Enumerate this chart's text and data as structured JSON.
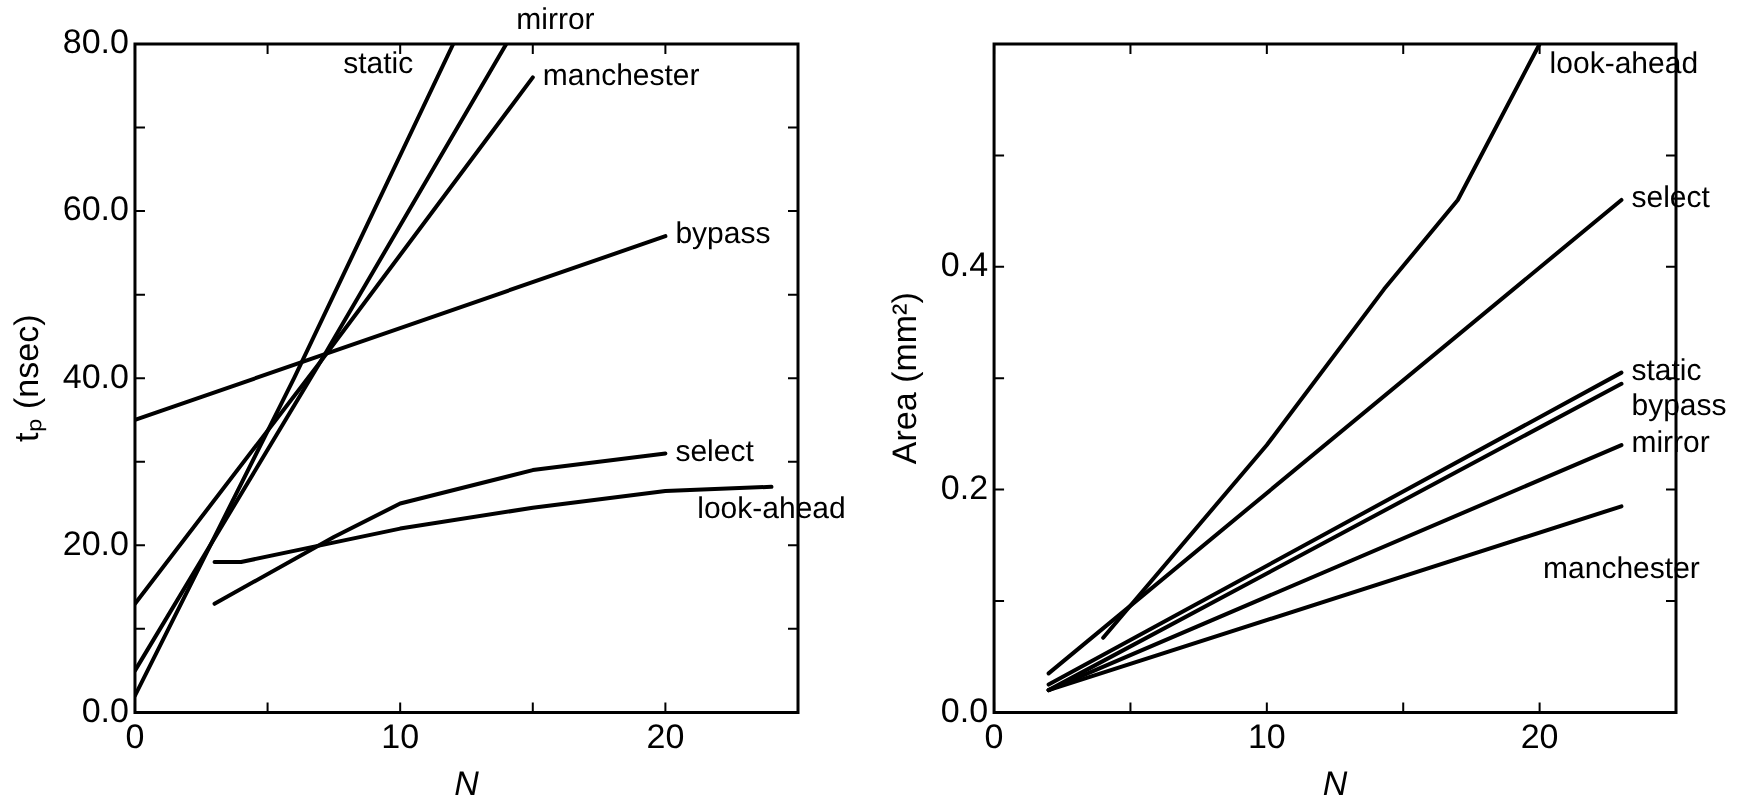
{
  "chart_data": [
    {
      "type": "line",
      "xlabel": "N",
      "ylabel": "tₚ (nsec)",
      "xlim": [
        0,
        25
      ],
      "xticks": [
        0,
        {
          "value": 5,
          "label": null
        },
        10,
        {
          "value": 15,
          "label": null
        },
        20,
        {
          "value": 25,
          "label": null
        }
      ],
      "ylim": [
        0,
        80
      ],
      "yticks": [
        {
          "value": 0,
          "label": "0.0"
        },
        {
          "value": 10,
          "label": null
        },
        {
          "value": 20,
          "label": "20.0"
        },
        {
          "value": 30,
          "label": null
        },
        {
          "value": 40,
          "label": "40.0"
        },
        {
          "value": 50,
          "label": null
        },
        {
          "value": 60,
          "label": "60.0"
        },
        {
          "value": 70,
          "label": null
        },
        {
          "value": 80,
          "label": "80.0"
        }
      ],
      "grid": false,
      "legend": "right",
      "marker": "none",
      "line_style": "solid",
      "series": [
        {
          "name": "static",
          "color": "#000000",
          "x": [
            0,
            6,
            12
          ],
          "values": [
            2,
            40,
            80
          ]
        },
        {
          "name": "mirror",
          "color": "#000000",
          "x": [
            0,
            7,
            14
          ],
          "values": [
            5,
            42,
            80
          ]
        },
        {
          "name": "manchester",
          "color": "#000000",
          "x": [
            0,
            7,
            15
          ],
          "values": [
            13,
            42,
            76
          ]
        },
        {
          "name": "bypass",
          "color": "#000000",
          "x": [
            0,
            10,
            20
          ],
          "values": [
            35,
            46,
            57
          ]
        },
        {
          "name": "select",
          "color": "#000000",
          "x": [
            3,
            7.5,
            10,
            15,
            20
          ],
          "values": [
            13,
            21,
            25,
            29,
            31
          ]
        },
        {
          "name": "look-ahead",
          "color": "#000000",
          "x": [
            3,
            4,
            10,
            15,
            20,
            24
          ],
          "values": [
            18,
            18,
            22,
            24.5,
            26.5,
            27
          ]
        }
      ]
    },
    {
      "type": "line",
      "xlabel": "N",
      "ylabel": "Area (mm²)",
      "xlim": [
        0,
        25
      ],
      "xticks": [
        0,
        {
          "value": 5,
          "label": null
        },
        10,
        {
          "value": 15,
          "label": null
        },
        20,
        {
          "value": 25,
          "label": null
        }
      ],
      "ylim": [
        0,
        0.6
      ],
      "yticks": [
        {
          "value": 0,
          "label": "0.0"
        },
        {
          "value": 0.1,
          "label": null
        },
        {
          "value": 0.2,
          "label": "0.2"
        },
        {
          "value": 0.3,
          "label": null
        },
        {
          "value": 0.4,
          "label": "0.4"
        },
        {
          "value": 0.5,
          "label": null
        },
        {
          "value": 0.6,
          "label": null
        }
      ],
      "grid": false,
      "legend": "right",
      "marker": "none",
      "line_style": "solid",
      "series": [
        {
          "name": "look-ahead",
          "color": "#000000",
          "x": [
            4,
            10,
            14.3,
            17,
            20
          ],
          "values": [
            0.067,
            0.24,
            0.38,
            0.46,
            0.6
          ]
        },
        {
          "name": "select",
          "color": "#000000",
          "x": [
            2,
            23
          ],
          "values": [
            0.035,
            0.46
          ]
        },
        {
          "name": "static",
          "color": "#000000",
          "x": [
            2,
            23
          ],
          "values": [
            0.025,
            0.305
          ]
        },
        {
          "name": "bypass",
          "color": "#000000",
          "x": [
            2,
            23
          ],
          "values": [
            0.02,
            0.295
          ]
        },
        {
          "name": "mirror",
          "color": "#000000",
          "x": [
            2,
            23
          ],
          "values": [
            0.02,
            0.24
          ]
        },
        {
          "name": "manchester",
          "color": "#000000",
          "x": [
            2,
            23
          ],
          "values": [
            0.02,
            0.185
          ]
        }
      ]
    }
  ]
}
